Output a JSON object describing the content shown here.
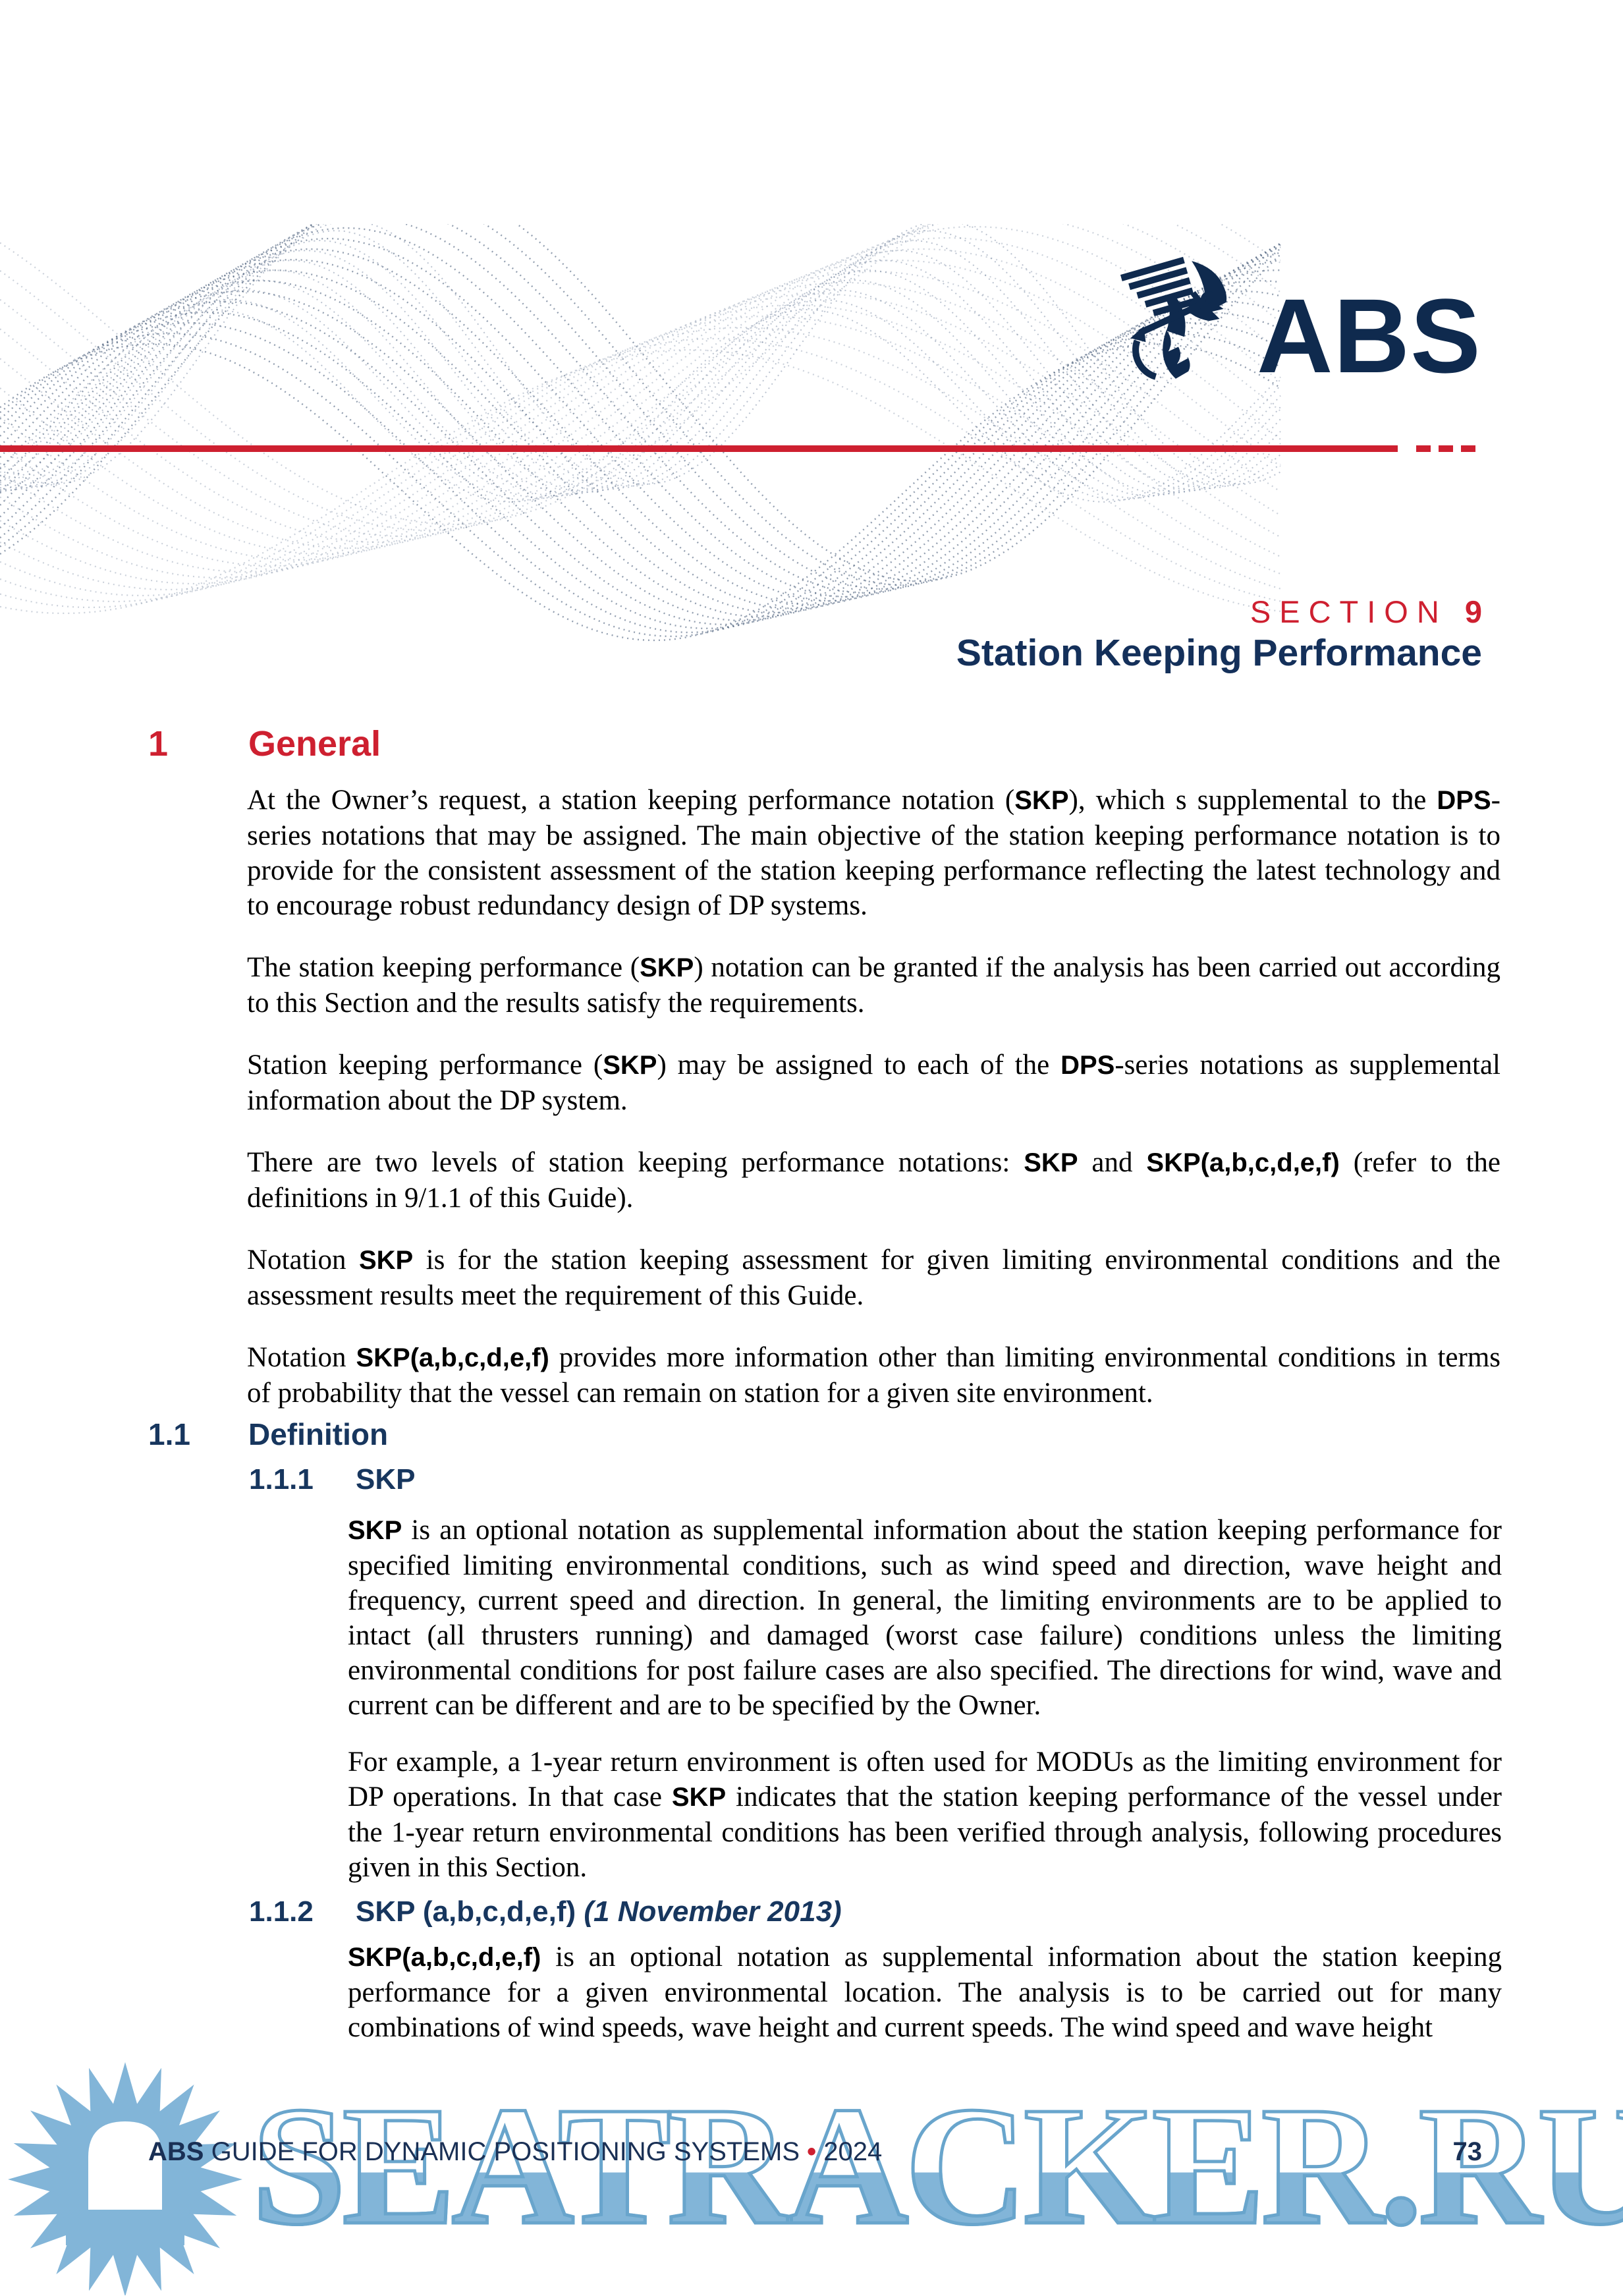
{
  "colors": {
    "brand_navy": "#0F2A4E",
    "heading_blue": "#17365E",
    "accent_red": "#CE2030",
    "watermark_blue": "#82B5D8"
  },
  "header": {
    "brand": "ABS",
    "section_label": "SECTION",
    "section_number": "9",
    "title": "Station Keeping Performance"
  },
  "sections": [
    {
      "number": "1",
      "title": "General",
      "paragraphs": [
        [
          {
            "t": "At the Owner’s request, a station keeping performance notation ("
          },
          {
            "t": "SKP",
            "b": true
          },
          {
            "t": "), which s supplemental to the "
          },
          {
            "t": "DPS",
            "b": true
          },
          {
            "t": "-series notations that may be assigned. The main objective of the station keeping performance notation is to provide for the consistent assessment of the station keeping performance reflecting the latest technology and to encourage robust redundancy design of DP systems."
          }
        ],
        [
          {
            "t": "The station keeping performance ("
          },
          {
            "t": "SKP",
            "b": true
          },
          {
            "t": ") notation can be granted if the analysis has been carried out according to this Section and the results satisfy the requirements."
          }
        ],
        [
          {
            "t": "Station keeping performance ("
          },
          {
            "t": "SKP",
            "b": true
          },
          {
            "t": ") may be assigned to each of the "
          },
          {
            "t": "DPS",
            "b": true
          },
          {
            "t": "-series notations as supplemental information about the DP system."
          }
        ],
        [
          {
            "t": "There are two levels of station keeping performance notations: "
          },
          {
            "t": "SKP",
            "b": true
          },
          {
            "t": " and "
          },
          {
            "t": "SKP(a,b,c,d,e,f)",
            "b": true
          },
          {
            "t": " (refer to the definitions in 9/1.1 of this Guide)."
          }
        ],
        [
          {
            "t": "Notation "
          },
          {
            "t": "SKP",
            "b": true
          },
          {
            "t": " is for the station keeping assessment for given limiting environmental conditions and the assessment results meet the requirement of this Guide."
          }
        ],
        [
          {
            "t": "Notation "
          },
          {
            "t": "SKP(a,b,c,d,e,f)",
            "b": true
          },
          {
            "t": " provides more information other than limiting environmental conditions in terms of probability that the vessel can remain on station for a given site environment."
          }
        ]
      ]
    },
    {
      "number": "1.1",
      "title": "Definition",
      "subsections": [
        {
          "number": "1.1.1",
          "title": "SKP",
          "paragraphs": [
            [
              {
                "t": "SKP",
                "b": true
              },
              {
                "t": " is an optional notation as supplemental information about the station keeping performance for specified limiting environmental conditions, such as wind speed and direction, wave height and frequency, current speed and direction. In general, the limiting environments are to be applied to intact (all thrusters running) and damaged (worst case failure) conditions unless the limiting environmental conditions for post failure cases are also specified. The directions for wind, wave and current can be different and are to be specified by the Owner."
              }
            ],
            [
              {
                "t": "For example, a 1-year return environment is often used for MODUs as the limiting environment for DP operations. In that case "
              },
              {
                "t": "SKP",
                "b": true
              },
              {
                "t": " indicates that the station keeping performance of the vessel under the 1-year return environmental conditions has been verified through analysis, following procedures given in this Section."
              }
            ]
          ]
        },
        {
          "number": "1.1.2",
          "title": "SKP (a,b,c,d,e,f)",
          "title_suffix": "(1 November 2013)",
          "paragraphs": [
            [
              {
                "t": "SKP(a,b,c,d,e,f)",
                "b": true
              },
              {
                "t": " is an optional notation as supplemental information about the station keeping performance for a given environmental location. The analysis is to be carried out for many combinations of wind speeds, wave height and current speeds. The wind speed and wave height"
              }
            ]
          ]
        }
      ]
    }
  ],
  "footer": {
    "brand": "ABS",
    "text": "GUIDE FOR DYNAMIC POSITIONING SYSTEMS",
    "bullet": "•",
    "year": "2024",
    "page_number": "73"
  },
  "watermark": {
    "text": "SEATRACKER.RU"
  }
}
